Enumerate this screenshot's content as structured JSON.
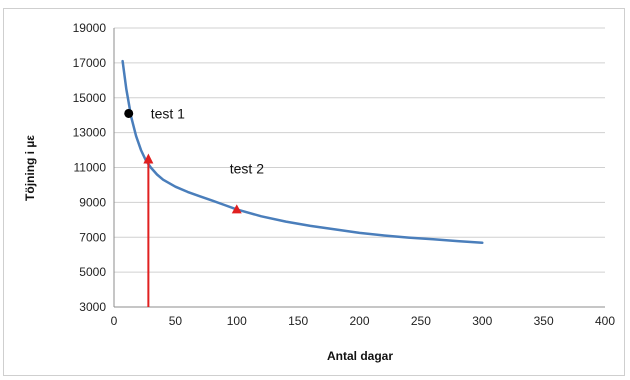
{
  "chart_data": {
    "type": "line",
    "xlabel": "Antal dagar",
    "ylabel": "Töjning i µε",
    "xlim": [
      0,
      400
    ],
    "ylim": [
      3000,
      19000
    ],
    "xticks": [
      "0",
      "50",
      "100",
      "150",
      "200",
      "250",
      "300",
      "350",
      "400"
    ],
    "yticks": [
      "3000",
      "5000",
      "7000",
      "9000",
      "11000",
      "13000",
      "15000",
      "17000",
      "19000"
    ],
    "grid": true,
    "series": [
      {
        "color": "#4a7ebb",
        "x": [
          7,
          10,
          14,
          18,
          22,
          26,
          30,
          35,
          40,
          50,
          60,
          70,
          80,
          90,
          100,
          120,
          140,
          160,
          180,
          200,
          220,
          240,
          260,
          280,
          300
        ],
        "y": [
          17100,
          15500,
          13900,
          12800,
          12000,
          11400,
          11000,
          10600,
          10300,
          9900,
          9600,
          9350,
          9100,
          8850,
          8600,
          8200,
          7900,
          7650,
          7450,
          7250,
          7100,
          6980,
          6880,
          6780,
          6680
        ]
      }
    ],
    "points": [
      {
        "label": "test 1",
        "x": 12,
        "y": 14100,
        "marker": "circle",
        "color": "#000000"
      },
      {
        "label": "test 2",
        "x": 100,
        "y": 8600,
        "marker": "triangle",
        "color": "#e02020"
      }
    ],
    "arrow": {
      "x": 28,
      "y_from": 3000,
      "y_to": 11800,
      "color": "#e02020"
    }
  }
}
